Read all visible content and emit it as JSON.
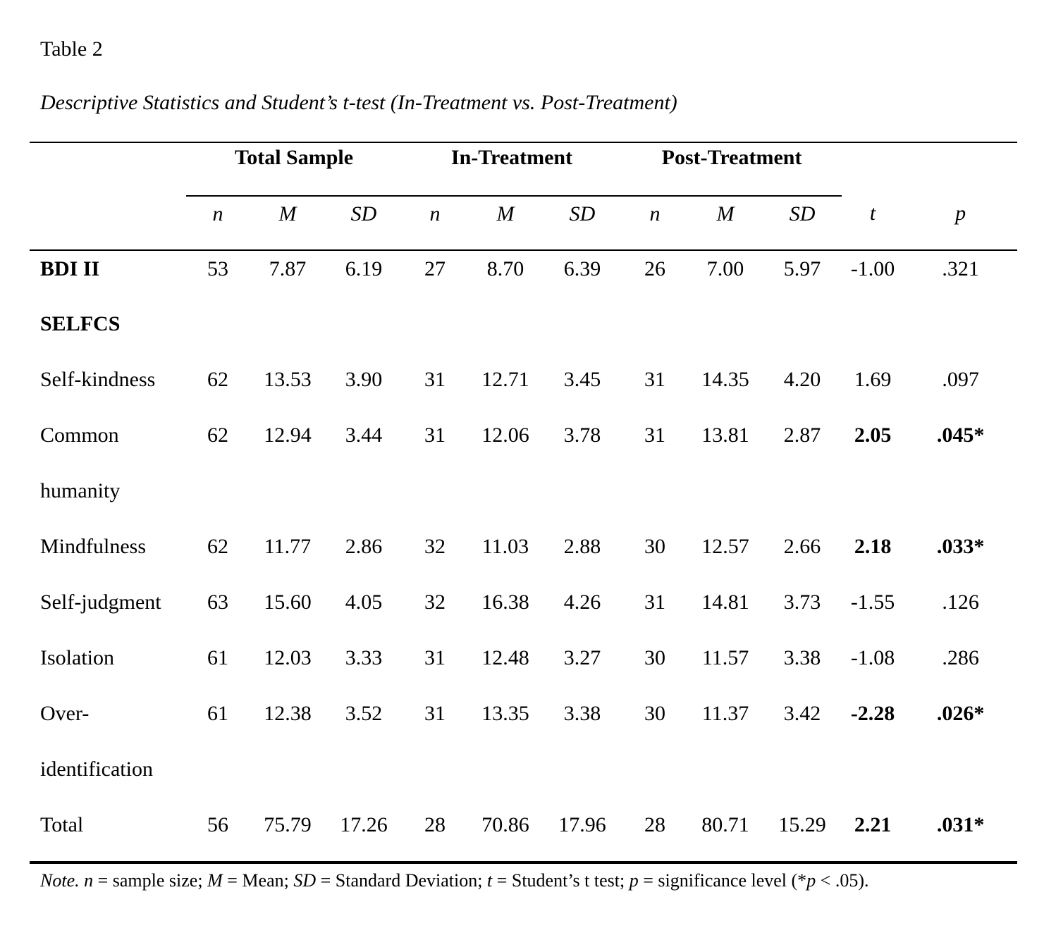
{
  "doc": {
    "title": "Table 2",
    "caption": "Descriptive Statistics and Student’s t-test (In-Treatment vs. Post-Treatment)"
  },
  "table": {
    "group_headers": [
      "Total Sample",
      "In-Treatment",
      "Post-Treatment"
    ],
    "sub_headers": [
      "n",
      "M",
      "SD",
      "n",
      "M",
      "SD",
      "n",
      "M",
      "SD",
      "t",
      "p"
    ],
    "rows": [
      {
        "label": "BDI II",
        "bold_label": true,
        "bold_tp": false,
        "values": [
          "53",
          "7.87",
          "6.19",
          "27",
          "8.70",
          "6.39",
          "26",
          "7.00",
          "5.97",
          "-1.00",
          ".321"
        ]
      },
      {
        "label": "SELFCS",
        "bold_label": true,
        "bold_tp": false,
        "values": []
      },
      {
        "label": "Self-kindness",
        "bold_label": false,
        "bold_tp": false,
        "values": [
          "62",
          "13.53",
          "3.90",
          "31",
          "12.71",
          "3.45",
          "31",
          "14.35",
          "4.20",
          "1.69",
          ".097"
        ]
      },
      {
        "label": "Common",
        "bold_label": false,
        "bold_tp": true,
        "values": [
          "62",
          "12.94",
          "3.44",
          "31",
          "12.06",
          "3.78",
          "31",
          "13.81",
          "2.87",
          "2.05",
          ".045*"
        ]
      },
      {
        "label": "humanity",
        "bold_label": false,
        "bold_tp": false,
        "continuation": true,
        "values": []
      },
      {
        "label": "Mindfulness",
        "bold_label": false,
        "bold_tp": true,
        "values": [
          "62",
          "11.77",
          "2.86",
          "32",
          "11.03",
          "2.88",
          "30",
          "12.57",
          "2.66",
          "2.18",
          ".033*"
        ]
      },
      {
        "label": "Self-judgment",
        "bold_label": false,
        "bold_tp": false,
        "values": [
          "63",
          "15.60",
          "4.05",
          "32",
          "16.38",
          "4.26",
          "31",
          "14.81",
          "3.73",
          "-1.55",
          ".126"
        ]
      },
      {
        "label": "Isolation",
        "bold_label": false,
        "bold_tp": false,
        "values": [
          "61",
          "12.03",
          "3.33",
          "31",
          "12.48",
          "3.27",
          "30",
          "11.57",
          "3.38",
          "-1.08",
          ".286"
        ]
      },
      {
        "label": "Over-",
        "bold_label": false,
        "bold_tp": true,
        "values": [
          "61",
          "12.38",
          "3.52",
          "31",
          "13.35",
          "3.38",
          "30",
          "11.37",
          "3.42",
          "-2.28",
          ".026*"
        ]
      },
      {
        "label": "identification",
        "bold_label": false,
        "bold_tp": false,
        "continuation": true,
        "values": []
      },
      {
        "label": "Total",
        "bold_label": false,
        "bold_tp": true,
        "values": [
          "56",
          "75.79",
          "17.26",
          "28",
          "70.86",
          "17.96",
          "28",
          "80.71",
          "15.29",
          "2.21",
          ".031*"
        ]
      }
    ],
    "note_segments": [
      {
        "t": "Note.",
        "i": true
      },
      {
        "t": " ",
        "i": false
      },
      {
        "t": "n",
        "i": true
      },
      {
        "t": " = sample size; ",
        "i": false
      },
      {
        "t": "M",
        "i": true
      },
      {
        "t": " = Mean; ",
        "i": false
      },
      {
        "t": "SD",
        "i": true
      },
      {
        "t": " = Standard Deviation; ",
        "i": false
      },
      {
        "t": "t",
        "i": true
      },
      {
        "t": " = Student’s t test; ",
        "i": false
      },
      {
        "t": "p",
        "i": true
      },
      {
        "t": " = significance level (*",
        "i": false
      },
      {
        "t": "p",
        "i": true
      },
      {
        "t": " < .05).",
        "i": false
      }
    ],
    "colors": {
      "text": "#000000",
      "background": "#ffffff",
      "rule": "#000000"
    }
  }
}
